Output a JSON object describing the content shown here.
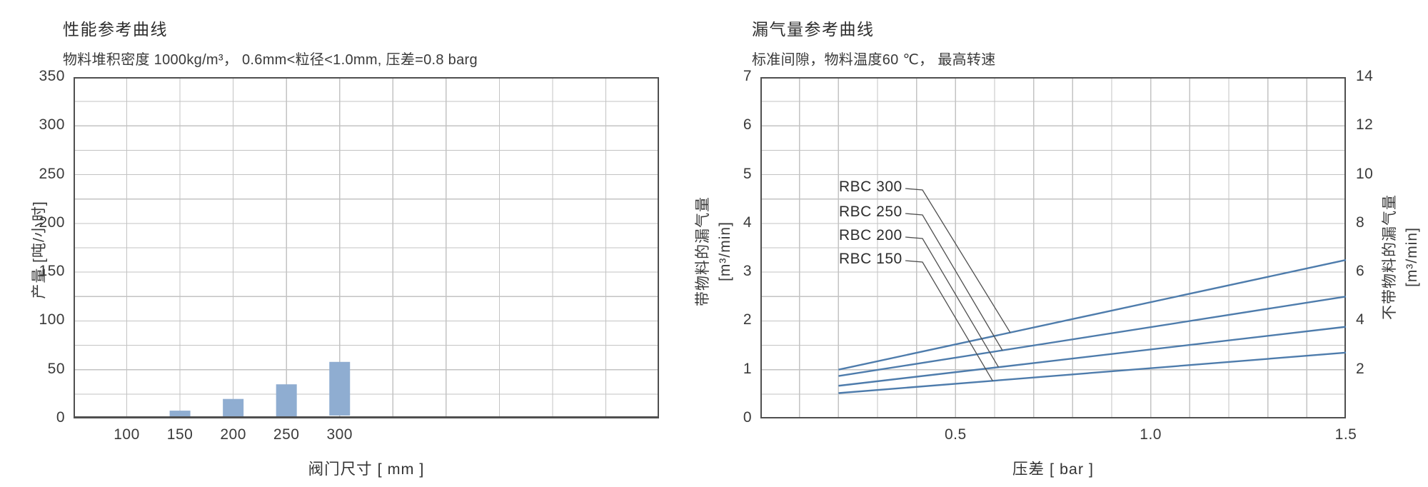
{
  "page": {
    "background": "#ffffff",
    "text_color": "#3a3a3a",
    "grid_color": "#c3c3c3",
    "axis_color": "#4f4f4f",
    "leader_color": "#4f4f4f"
  },
  "chart_data": [
    {
      "id": "performance",
      "type": "bar",
      "title": "性能参考曲线",
      "subtitle": "物料堆积密度 1000kg/m³， 0.6mm<粒径<1.0mm, 压差=0.8 barg",
      "xlabel": "阀门尺寸 [ mm ]",
      "ylabel": "产量 [吨/小时]",
      "bar_color": "#8fadd1",
      "grid": true,
      "ylim": [
        0,
        350
      ],
      "y_tick_step": 50,
      "y_gridline_step": 25,
      "x_tick_labels": [
        "100",
        "150",
        "200",
        "250",
        "300"
      ],
      "x_gridline_intervals": 11,
      "x_first_label_gridline": 1,
      "bars": [
        {
          "category": "150",
          "range": [
            1,
            8
          ]
        },
        {
          "category": "200",
          "range": [
            1,
            20
          ]
        },
        {
          "category": "250",
          "range": [
            2,
            35
          ]
        },
        {
          "category": "300",
          "range": [
            3,
            58
          ]
        }
      ]
    },
    {
      "id": "leakage",
      "type": "line",
      "title": "漏气量参考曲线",
      "subtitle": "标准间隙，物料温度60 ℃， 最高转速",
      "xlabel": "压差 [ bar ]",
      "ylabel_left": {
        "text": "带物料的漏气量",
        "unit": "[m³/min]"
      },
      "ylabel_right": {
        "text": "不带物料的漏气量",
        "unit": "[m³/min]"
      },
      "line_color": "#4e7cac",
      "grid": true,
      "xlim": [
        0,
        1.5
      ],
      "x_gridline_step": 0.1,
      "x_tick_values": [
        0.5,
        1.0,
        1.5
      ],
      "x_tick_labels": [
        "0.5",
        "1.0",
        "1.5"
      ],
      "ylim_left": [
        0,
        7
      ],
      "y_tick_step_left": 1,
      "ylim_right": [
        0,
        14
      ],
      "y_tick_step_right": 2,
      "y_gridline_step": 0.5,
      "series": [
        {
          "name": "RBC 300",
          "points": [
            [
              0.2,
              1.0
            ],
            [
              1.5,
              3.25
            ]
          ]
        },
        {
          "name": "RBC 250",
          "points": [
            [
              0.2,
              0.87
            ],
            [
              1.5,
              2.5
            ]
          ]
        },
        {
          "name": "RBC 200",
          "points": [
            [
              0.2,
              0.67
            ],
            [
              1.5,
              1.88
            ]
          ]
        },
        {
          "name": "RBC 150",
          "points": [
            [
              0.2,
              0.52
            ],
            [
              1.5,
              1.35
            ]
          ]
        }
      ]
    }
  ]
}
